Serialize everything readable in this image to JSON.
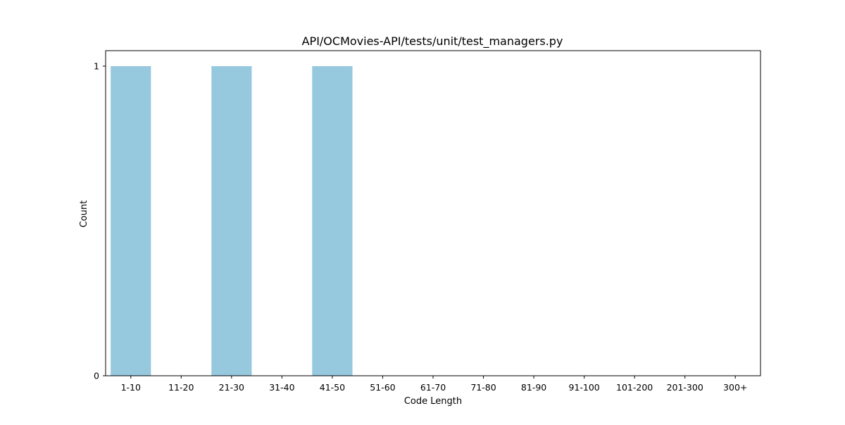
{
  "chart_data": {
    "type": "bar",
    "title": "API/OCMovies-API/tests/unit/test_managers.py",
    "xlabel": "Code Length",
    "ylabel": "Count",
    "categories": [
      "1-10",
      "11-20",
      "21-30",
      "31-40",
      "41-50",
      "51-60",
      "61-70",
      "71-80",
      "81-90",
      "91-100",
      "101-200",
      "201-300",
      "300+"
    ],
    "values": [
      1,
      0,
      1,
      0,
      1,
      0,
      0,
      0,
      0,
      0,
      0,
      0,
      0
    ],
    "ylim": [
      0,
      1.05
    ],
    "yticks": [
      0,
      1
    ],
    "ytick_labels": [
      "0",
      "1"
    ],
    "grid": false,
    "bar_color": "#96c9de"
  }
}
